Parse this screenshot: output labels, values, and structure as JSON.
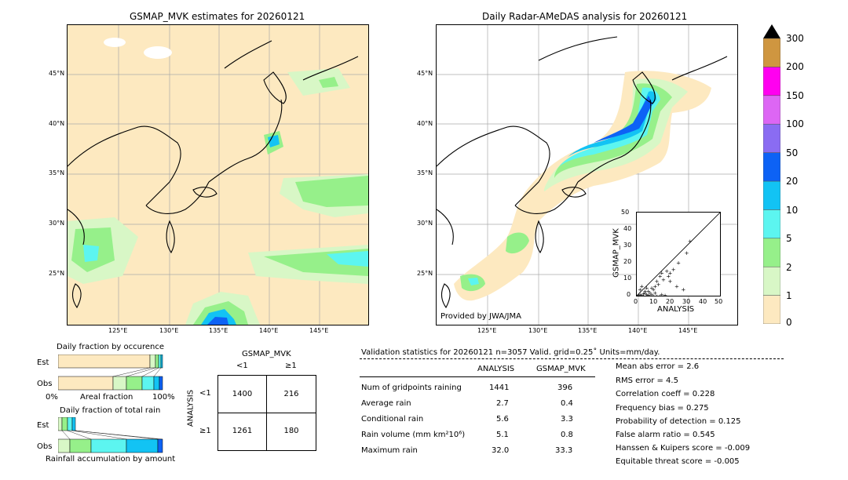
{
  "left_map": {
    "title": "GSMAP_MVK estimates for 20260121",
    "lat_labels": [
      "45°N",
      "40°N",
      "35°N",
      "30°N",
      "25°N"
    ],
    "lon_labels": [
      "125°E",
      "130°E",
      "135°E",
      "140°E",
      "145°E"
    ]
  },
  "right_map": {
    "title": "Daily Radar-AMeDAS analysis for 20260121",
    "lat_labels": [
      "45°N",
      "40°N",
      "35°N",
      "30°N",
      "25°N"
    ],
    "lon_labels": [
      "125°E",
      "130°E",
      "135°E",
      "140°E",
      "145°E"
    ],
    "credit": "Provided by JWA/JMA"
  },
  "colorbar": {
    "labels": [
      "0",
      "1",
      "2",
      "5",
      "10",
      "20",
      "50",
      "100",
      "150",
      "200",
      "300"
    ],
    "colors": [
      "#fde9c0",
      "#d8f7c6",
      "#96f08a",
      "#5cf5f0",
      "#12c3f4",
      "#0d62f5",
      "#8a6cf2",
      "#dd66f4",
      "#ff00f0",
      "#cf9640"
    ]
  },
  "scatter": {
    "xlabel": "ANALYSIS",
    "ylabel": "GSMAP_MVK",
    "ticks": [
      "0",
      "10",
      "20",
      "30",
      "40",
      "50"
    ]
  },
  "occurrence": {
    "title": "Daily fraction by occurence",
    "row_labels": [
      "Est",
      "Obs"
    ],
    "axis_left": "0%",
    "axis_mid": "Areal fraction",
    "axis_right": "100%"
  },
  "total_rain": {
    "title": "Daily fraction of total rain",
    "row_labels": [
      "Est",
      "Obs"
    ],
    "axis_label": "Rainfall accumulation by amount"
  },
  "contingency": {
    "top_label": "GSMAP_MVK",
    "col_labels": [
      "<1",
      "≥1"
    ],
    "side_label": "ANALYSIS",
    "row_labels": [
      "<1",
      "≥1"
    ],
    "cells": [
      [
        "1400",
        "216"
      ],
      [
        "1261",
        "180"
      ]
    ]
  },
  "validation": {
    "header": "Validation statistics for 20260121  n=3057 Valid. grid=0.25˚ Units=mm/day.",
    "col_analysis": "ANALYSIS",
    "col_gsmap": "GSMAP_MVK",
    "rows": [
      {
        "label": "Num of gridpoints raining",
        "analysis": "1441",
        "gsmap": "396"
      },
      {
        "label": "Average rain",
        "analysis": "2.7",
        "gsmap": "0.4"
      },
      {
        "label": "Conditional rain",
        "analysis": "5.6",
        "gsmap": "3.3"
      },
      {
        "label": "Rain volume (mm km²10⁶)",
        "analysis": "5.1",
        "gsmap": "0.8"
      },
      {
        "label": "Maximum rain",
        "analysis": "32.0",
        "gsmap": "33.3"
      }
    ],
    "scores": [
      "Mean abs error =    2.6",
      "RMS error =    4.5",
      "Correlation coeff =  0.228",
      "Frequency bias =  0.275",
      "Probability of detection =  0.125",
      "False alarm ratio =  0.545",
      "Hanssen & Kuipers score = -0.009",
      "Equitable threat score = -0.005"
    ]
  },
  "chart_data": {
    "type": "scatter",
    "xlabel": "ANALYSIS",
    "ylabel": "GSMAP_MVK",
    "xlim": [
      0,
      50
    ],
    "ylim": [
      0,
      50
    ],
    "points": [
      [
        1,
        0.5
      ],
      [
        2,
        1
      ],
      [
        3,
        0.5
      ],
      [
        4,
        1.5
      ],
      [
        5,
        2
      ],
      [
        6,
        1
      ],
      [
        7,
        3
      ],
      [
        8,
        2
      ],
      [
        9,
        5
      ],
      [
        10,
        4
      ],
      [
        11,
        6
      ],
      [
        12,
        9
      ],
      [
        13,
        7
      ],
      [
        14,
        12
      ],
      [
        15,
        14
      ],
      [
        16,
        10
      ],
      [
        18,
        15
      ],
      [
        19,
        12
      ],
      [
        20,
        9
      ],
      [
        20,
        14
      ],
      [
        22,
        16
      ],
      [
        25,
        20
      ],
      [
        24,
        6
      ],
      [
        28,
        4
      ],
      [
        30,
        26
      ],
      [
        32,
        33
      ],
      [
        2,
        4
      ],
      [
        3,
        6
      ],
      [
        5,
        3
      ],
      [
        6,
        5
      ],
      [
        4,
        0
      ],
      [
        6,
        0
      ],
      [
        8,
        0
      ],
      [
        10,
        0
      ],
      [
        12,
        0
      ],
      [
        14,
        0
      ],
      [
        15,
        1
      ],
      [
        17,
        0.5
      ],
      [
        11,
        2
      ],
      [
        9,
        1
      ],
      [
        7,
        0.5
      ]
    ]
  }
}
